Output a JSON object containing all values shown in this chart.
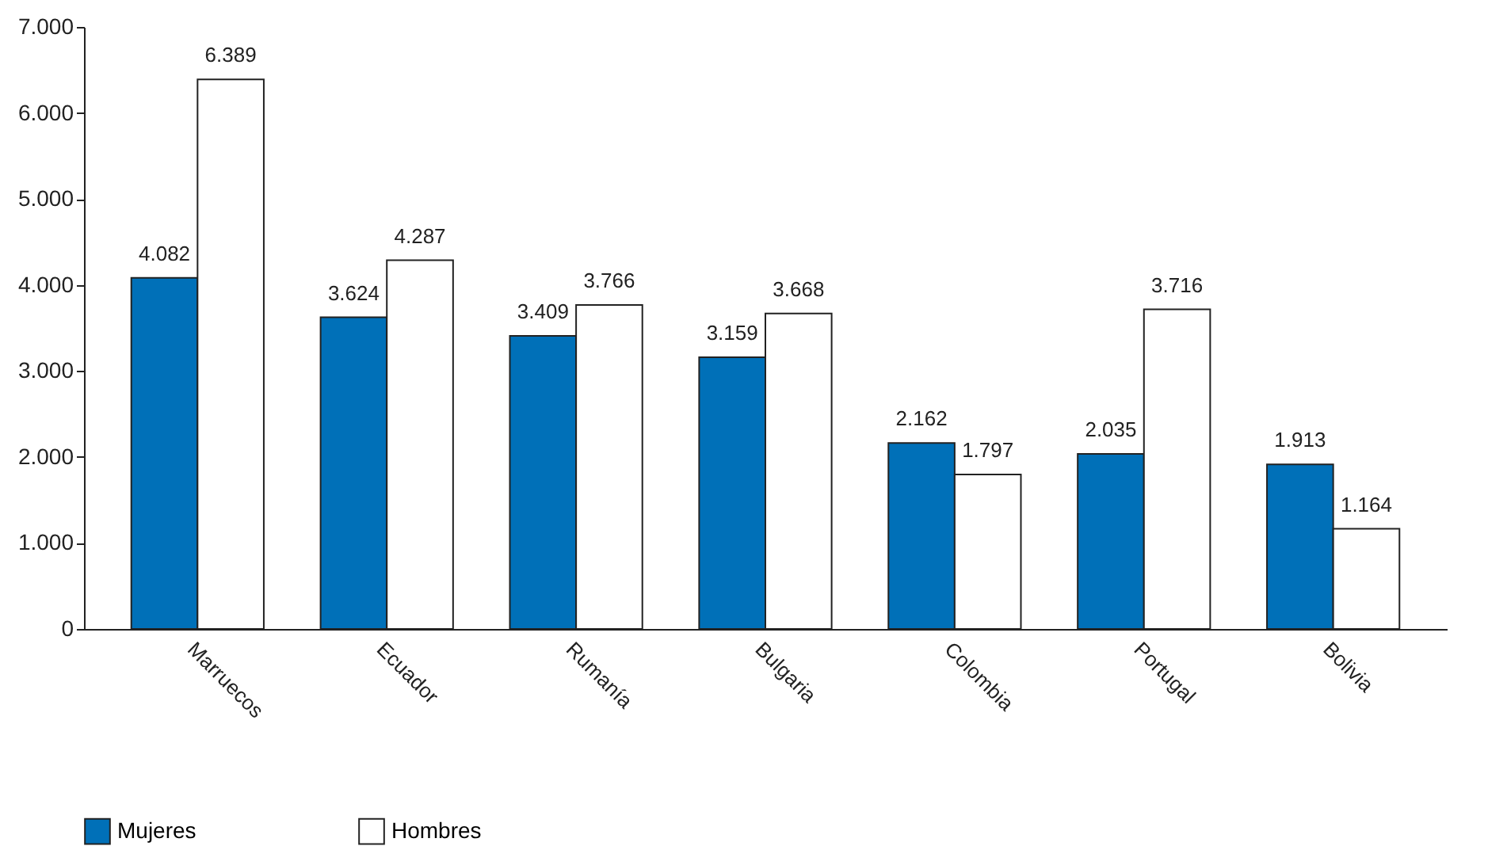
{
  "chart_data": {
    "type": "bar",
    "categories": [
      "Marruecos",
      "Ecuador",
      "Rumanía",
      "Bulgaria",
      "Colombia",
      "Portugal",
      "Bolivia"
    ],
    "series": [
      {
        "name": "Mujeres",
        "color": "#0070b8",
        "values": [
          4082,
          3624,
          3409,
          3159,
          2162,
          2035,
          1913
        ],
        "value_labels": [
          "4.082",
          "3.624",
          "3.409",
          "3.159",
          "2.162",
          "2.035",
          "1.913"
        ]
      },
      {
        "name": "Hombres",
        "color": "#ffffff",
        "values": [
          6389,
          4287,
          3766,
          3668,
          1797,
          3716,
          1164
        ],
        "value_labels": [
          "6.389",
          "4.287",
          "3.766",
          "3.668",
          "1.797",
          "3.716",
          "1.164"
        ]
      }
    ],
    "ylim": [
      0,
      7000
    ],
    "yticks": [
      0,
      {
        "value": 1000,
        "label": "1.000"
      },
      {
        "value": 2000,
        "label": "2.000"
      },
      {
        "value": 3000,
        "label": "3.000"
      },
      {
        "value": 4000,
        "label": "4.000"
      },
      {
        "value": 5000,
        "label": "5.000"
      },
      {
        "value": 6000,
        "label": "6.000"
      },
      {
        "value": 7000,
        "label": "7.000"
      }
    ],
    "grid": false,
    "legend": "bottom"
  }
}
